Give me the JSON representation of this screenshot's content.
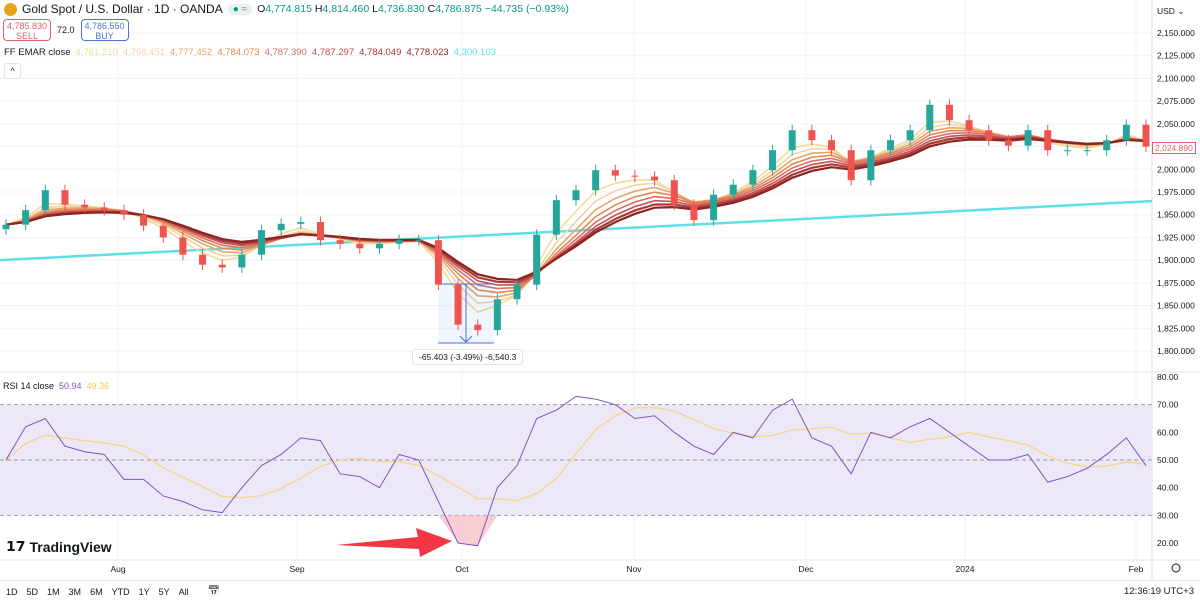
{
  "header": {
    "symbol": "Gold Spot / U.S. Dollar · 1D · OANDA",
    "open_label": "O",
    "open": "4,774.815",
    "high_label": "H",
    "high": "4,814.460",
    "low_label": "L",
    "low": "4,736.830",
    "close_label": "C",
    "close": "4,786.875",
    "change": "−44.735 (−0.93%)",
    "market_status_icon": "dot-icon",
    "pill_icon": "approx-icon",
    "pill_text": "≈"
  },
  "trade": {
    "sell_price": "4,785.830",
    "sell_label": "SELL",
    "spread": "72.0",
    "buy_price": "4,786.550",
    "buy_label": "BUY"
  },
  "ema_legend": {
    "name": "FF EMAR close",
    "values": [
      "4,761.210",
      "4,768.451",
      "4,777.452",
      "4,784.073",
      "4,787.390",
      "4,787.297",
      "4,784.049",
      "4,778.023",
      "4,300.103"
    ],
    "colors": [
      "#f0dc9a",
      "#f2d3a8",
      "#e9a46b",
      "#e08a50",
      "#da6f6a",
      "#c9504f",
      "#a83c3a",
      "#8c2420",
      "#5ee0e6"
    ]
  },
  "collapse_icon": "^",
  "rsi_legend": {
    "name": "RSI 14 close",
    "value": "50.94",
    "signal": "49.36"
  },
  "measure": {
    "text": "-65.403 (-3.49%) -6,540.3"
  },
  "price_axis": {
    "currency": "USD",
    "last_price": "2,024.890"
  },
  "rsi_axis": {
    "ticks": [
      "80.00",
      "70.00",
      "60.00",
      "50.00",
      "40.00",
      "30.00",
      "20.00"
    ]
  },
  "watermark": "TradingView",
  "bottom": {
    "ranges": [
      "1D",
      "5D",
      "1M",
      "3M",
      "6M",
      "YTD",
      "1Y",
      "5Y",
      "All"
    ],
    "clock": "12:36:19 UTC+3",
    "calendar_icon": "calendar-icon"
  },
  "colors": {
    "up": "#26a69a",
    "down": "#ef5350",
    "rsi": "#7e57c2",
    "rsi_signal": "#f5d58a",
    "rsi_band": "#ede8f7",
    "long_ema": "#5ee0e6",
    "arrow": "#f23645"
  },
  "chart_data": {
    "type": "candlestick",
    "price_ticks": [
      2150,
      2125,
      2100,
      2075,
      2050,
      2025,
      2000,
      1975,
      1950,
      1925,
      1900,
      1875,
      1850,
      1825,
      1800
    ],
    "ylim": [
      1790,
      2160
    ],
    "x_ticks": [
      "Aug",
      "Sep",
      "Oct",
      "Nov",
      "Dec",
      "2024",
      "Feb"
    ],
    "close": [
      1939,
      1955,
      1977,
      1961,
      1958,
      1955,
      1950,
      1938,
      1925,
      1906,
      1895,
      1892,
      1906,
      1933,
      1940,
      1942,
      1922,
      1918,
      1913,
      1918,
      1922,
      1922,
      1873,
      1829,
      1823,
      1857,
      1873,
      1928,
      1966,
      1977,
      1999,
      1993,
      1992,
      1988,
      1961,
      1944,
      1972,
      1983,
      1999,
      2021,
      2043,
      2032,
      2021,
      1988,
      2021,
      2032,
      2043,
      2071,
      2054,
      2043,
      2032,
      2026,
      2043,
      2021,
      2021,
      2021,
      2032,
      2049,
      2025
    ],
    "long_ema": [
      1900,
      1965
    ],
    "rsi": {
      "ylim": [
        15,
        85
      ],
      "levels": [
        70,
        50,
        30
      ],
      "values": [
        50,
        62,
        65,
        55,
        53,
        52,
        43,
        43,
        37,
        35,
        32,
        31,
        40,
        48,
        52,
        58,
        57,
        45,
        44,
        40,
        52,
        50,
        35,
        20,
        19,
        40,
        48,
        65,
        68,
        73,
        72,
        70,
        65,
        66,
        60,
        55,
        52,
        60,
        58,
        68,
        72,
        58,
        55,
        45,
        60,
        58,
        62,
        65,
        60,
        55,
        50,
        50,
        52,
        42,
        44,
        47,
        52,
        58,
        48
      ]
    }
  }
}
